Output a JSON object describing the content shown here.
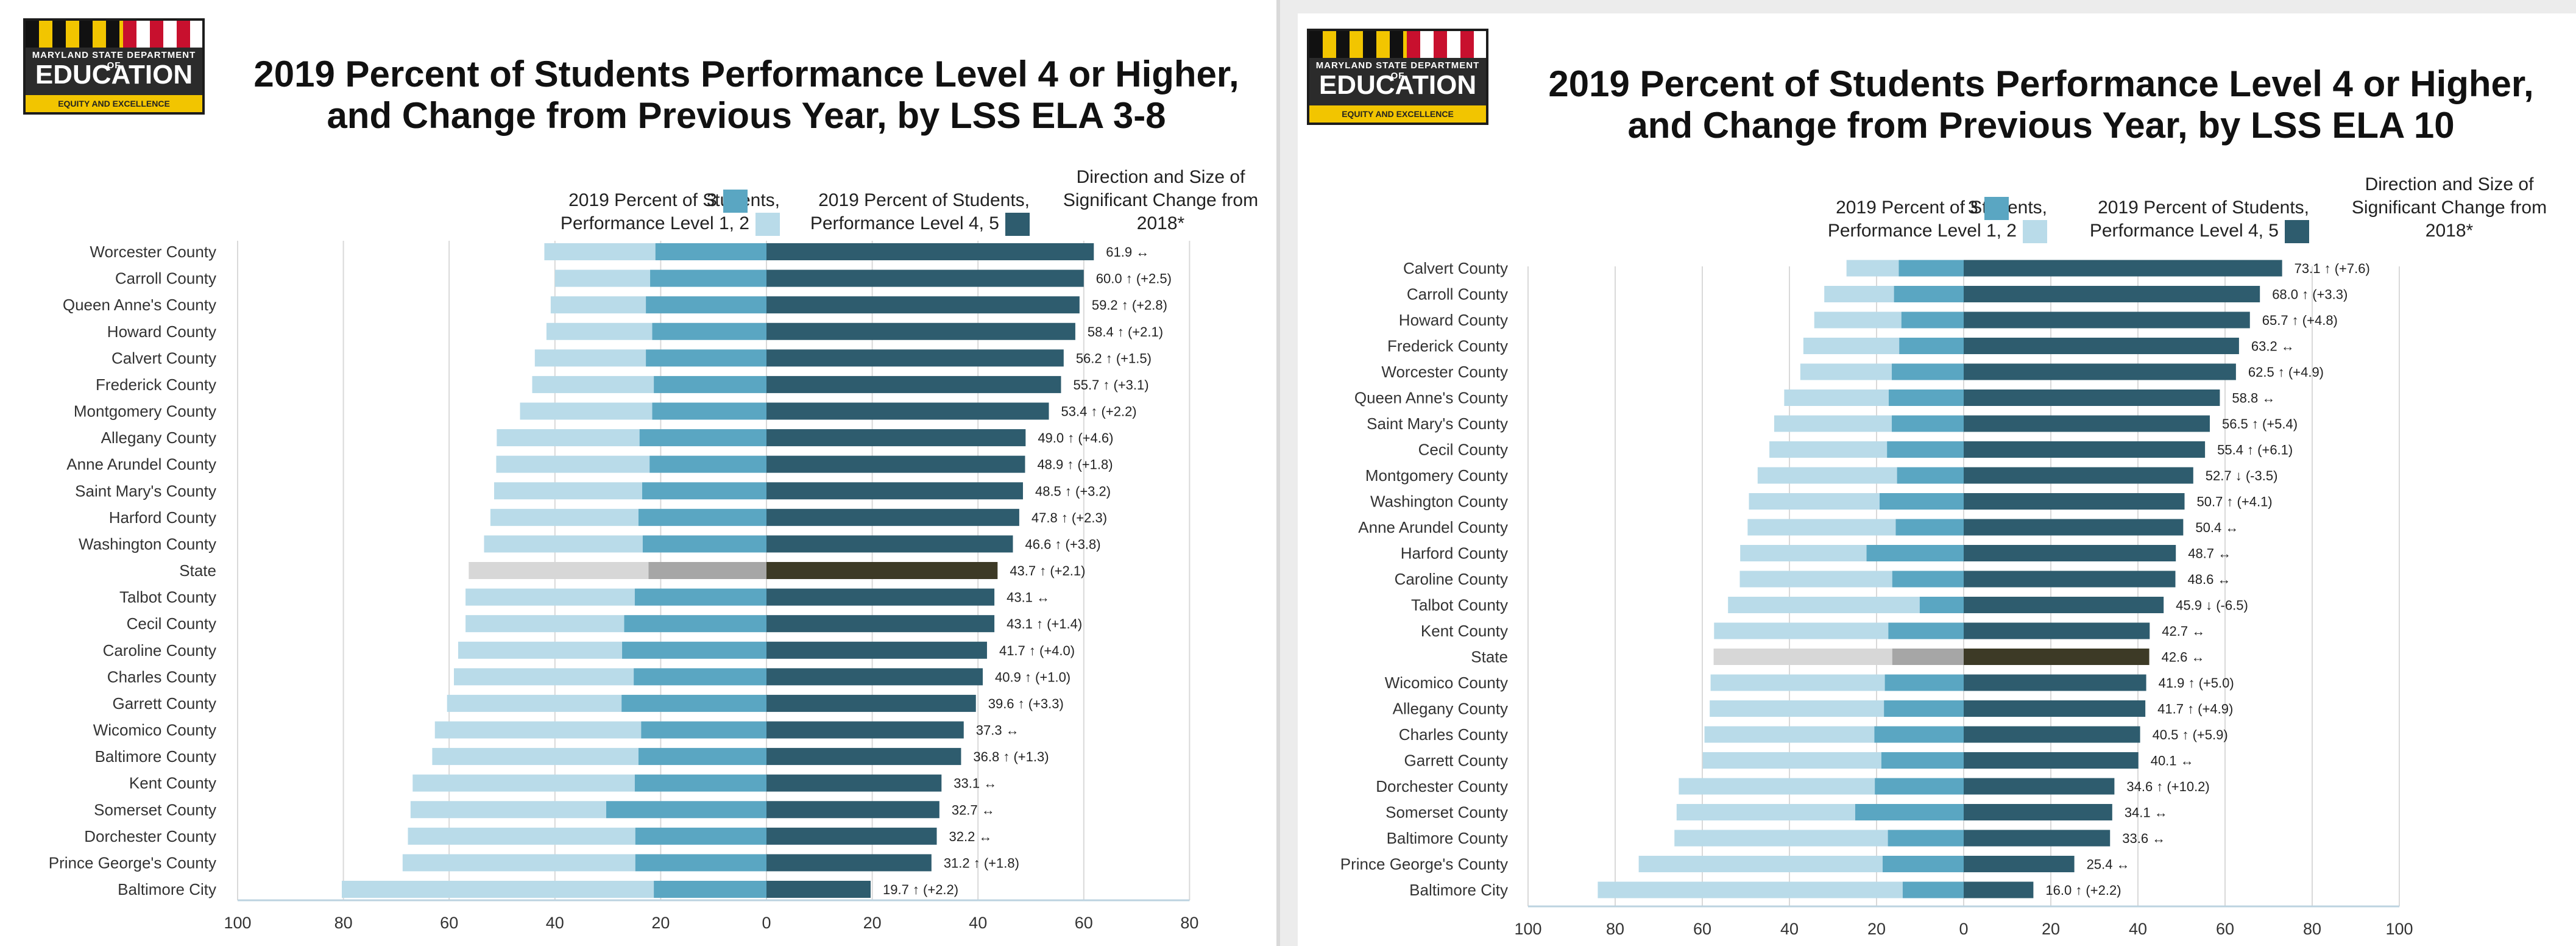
{
  "logo": {
    "state_line": "MARYLAND STATE DEPARTMENT OF",
    "name": "EDUCATION",
    "tagline": "EQUITY AND EXCELLENCE"
  },
  "legend": {
    "level12_label": "2019 Percent of Students,\nPerformance Level 1, 2",
    "level3_label": "3",
    "level45_label": "2019 Percent of Students,\nPerformance Level 4, 5",
    "change_label": "Direction and Size of\nSignificant Change from\n2018*"
  },
  "colors": {
    "level12": "#b9dbe9",
    "level3": "#5aa6c2",
    "level45": "#2e5c6e",
    "state_level12": "#d7d7d7",
    "state_level3": "#a6a6a6",
    "state_level45": "#3d3a26",
    "grid": "#d9d9d9",
    "axis": "#bcd3e0"
  },
  "chart_data": [
    {
      "type": "bar",
      "title": "2019 Percent of Students Performance Level 4 or Higher,\nand Change from Previous Year, by LSS ELA 3-8",
      "x_ticks": [
        "100",
        "80",
        "60",
        "40",
        "20",
        "0",
        "20",
        "40",
        "60",
        "80"
      ],
      "xlim": [
        -100,
        80
      ],
      "grid": true,
      "rows": [
        {
          "name": "Worcester County",
          "level12": 21.0,
          "level3": 21.0,
          "level45": 61.9,
          "label": "61.9 ↔"
        },
        {
          "name": "Carroll County",
          "level12": 18.0,
          "level3": 22.0,
          "level45": 60.0,
          "label": "60.0 ↑ (+2.5)"
        },
        {
          "name": "Queen Anne's County",
          "level12": 18.0,
          "level3": 22.8,
          "level45": 59.2,
          "label": "59.2 ↑ (+2.8)"
        },
        {
          "name": "Howard County",
          "level12": 20.0,
          "level3": 21.6,
          "level45": 58.4,
          "label": "58.4 ↑ (+2.1)"
        },
        {
          "name": "Calvert County",
          "level12": 21.0,
          "level3": 22.8,
          "level45": 56.2,
          "label": "56.2 ↑ (+1.5)"
        },
        {
          "name": "Frederick County",
          "level12": 23.0,
          "level3": 21.3,
          "level45": 55.7,
          "label": "55.7 ↑ (+3.1)"
        },
        {
          "name": "Montgomery County",
          "level12": 25.0,
          "level3": 21.6,
          "level45": 53.4,
          "label": "53.4 ↑ (+2.2)"
        },
        {
          "name": "Allegany County",
          "level12": 27.0,
          "level3": 24.0,
          "level45": 49.0,
          "label": "49.0 ↑ (+4.6)"
        },
        {
          "name": "Anne Arundel County",
          "level12": 29.0,
          "level3": 22.1,
          "level45": 48.9,
          "label": "48.9 ↑ (+1.8)"
        },
        {
          "name": "Saint Mary's County",
          "level12": 28.0,
          "level3": 23.5,
          "level45": 48.5,
          "label": "48.5 ↑ (+3.2)"
        },
        {
          "name": "Harford County",
          "level12": 28.0,
          "level3": 24.2,
          "level45": 47.8,
          "label": "47.8 ↑ (+2.3)"
        },
        {
          "name": "Washington County",
          "level12": 30.0,
          "level3": 23.4,
          "level45": 46.6,
          "label": "46.6 ↑ (+3.8)"
        },
        {
          "name": "State",
          "level12": 34.0,
          "level3": 22.3,
          "level45": 43.7,
          "label": "43.7 ↑ (+2.1)",
          "is_state": true
        },
        {
          "name": "Talbot County",
          "level12": 32.0,
          "level3": 24.9,
          "level45": 43.1,
          "label": "43.1 ↔"
        },
        {
          "name": "Cecil County",
          "level12": 30.0,
          "level3": 26.9,
          "level45": 43.1,
          "label": "43.1 ↑ (+1.4)"
        },
        {
          "name": "Caroline County",
          "level12": 31.0,
          "level3": 27.3,
          "level45": 41.7,
          "label": "41.7 ↑ (+4.0)"
        },
        {
          "name": "Charles County",
          "level12": 34.0,
          "level3": 25.1,
          "level45": 40.9,
          "label": "40.9 ↑ (+1.0)"
        },
        {
          "name": "Garrett County",
          "level12": 33.0,
          "level3": 27.4,
          "level45": 39.6,
          "label": "39.6 ↑ (+3.3)"
        },
        {
          "name": "Wicomico County",
          "level12": 39.0,
          "level3": 23.7,
          "level45": 37.3,
          "label": "37.3 ↔"
        },
        {
          "name": "Baltimore County",
          "level12": 39.0,
          "level3": 24.2,
          "level45": 36.8,
          "label": "36.8 ↑ (+1.3)"
        },
        {
          "name": "Kent County",
          "level12": 42.0,
          "level3": 24.9,
          "level45": 33.1,
          "label": "33.1 ↔"
        },
        {
          "name": "Somerset County",
          "level12": 37.0,
          "level3": 30.3,
          "level45": 32.7,
          "label": "32.7 ↔"
        },
        {
          "name": "Dorchester County",
          "level12": 43.0,
          "level3": 24.8,
          "level45": 32.2,
          "label": "32.2 ↔"
        },
        {
          "name": "Prince George's County",
          "level12": 44.0,
          "level3": 24.8,
          "level45": 31.2,
          "label": "31.2 ↑ (+1.8)"
        },
        {
          "name": "Baltimore City",
          "level12": 59.0,
          "level3": 21.3,
          "level45": 19.7,
          "label": "19.7 ↑ (+2.2)"
        }
      ]
    },
    {
      "type": "bar",
      "title": "2019 Percent of Students Performance Level 4 or Higher,\nand Change from Previous Year, by LSS ELA 10",
      "x_ticks": [
        "100",
        "80",
        "60",
        "40",
        "20",
        "0",
        "20",
        "40",
        "60",
        "80",
        "100"
      ],
      "xlim": [
        -100,
        100
      ],
      "grid": true,
      "rows": [
        {
          "name": "Calvert County",
          "level12": 12.0,
          "level3": 14.9,
          "level45": 73.1,
          "label": "73.1 ↑ (+7.6)"
        },
        {
          "name": "Carroll County",
          "level12": 16.0,
          "level3": 16.0,
          "level45": 68.0,
          "label": "68.0 ↑ (+3.3)"
        },
        {
          "name": "Howard County",
          "level12": 20.0,
          "level3": 14.3,
          "level45": 65.7,
          "label": "65.7 ↑ (+4.8)"
        },
        {
          "name": "Frederick County",
          "level12": 22.0,
          "level3": 14.8,
          "level45": 63.2,
          "label": "63.2 ↔"
        },
        {
          "name": "Worcester County",
          "level12": 21.0,
          "level3": 16.5,
          "level45": 62.5,
          "label": "62.5 ↑ (+4.9)"
        },
        {
          "name": "Queen Anne's County",
          "level12": 24.0,
          "level3": 17.2,
          "level45": 58.8,
          "label": "58.8 ↔"
        },
        {
          "name": "Saint Mary's County",
          "level12": 27.0,
          "level3": 16.5,
          "level45": 56.5,
          "label": "56.5 ↑ (+5.4)"
        },
        {
          "name": "Cecil County",
          "level12": 27.0,
          "level3": 17.6,
          "level45": 55.4,
          "label": "55.4 ↑ (+6.1)"
        },
        {
          "name": "Montgomery County",
          "level12": 32.0,
          "level3": 15.3,
          "level45": 52.7,
          "label": "52.7 ↓ (-3.5)"
        },
        {
          "name": "Washington County",
          "level12": 30.0,
          "level3": 19.3,
          "level45": 50.7,
          "label": "50.7 ↑ (+4.1)"
        },
        {
          "name": "Anne Arundel County",
          "level12": 34.0,
          "level3": 15.6,
          "level45": 50.4,
          "label": "50.4 ↔"
        },
        {
          "name": "Harford County",
          "level12": 29.0,
          "level3": 22.3,
          "level45": 48.7,
          "label": "48.7 ↔"
        },
        {
          "name": "Caroline County",
          "level12": 35.0,
          "level3": 16.4,
          "level45": 48.6,
          "label": "48.6 ↔"
        },
        {
          "name": "Talbot County",
          "level12": 44.0,
          "level3": 10.1,
          "level45": 45.9,
          "label": "45.9 ↓ (-6.5)"
        },
        {
          "name": "Kent County",
          "level12": 40.0,
          "level3": 17.3,
          "level45": 42.7,
          "label": "42.7 ↔"
        },
        {
          "name": "State",
          "level12": 41.0,
          "level3": 16.4,
          "level45": 42.6,
          "label": "42.6 ↔",
          "is_state": true
        },
        {
          "name": "Wicomico County",
          "level12": 40.0,
          "level3": 18.1,
          "level45": 41.9,
          "label": "41.9 ↑ (+5.0)"
        },
        {
          "name": "Allegany County",
          "level12": 40.0,
          "level3": 18.3,
          "level45": 41.7,
          "label": "41.7 ↑ (+4.9)"
        },
        {
          "name": "Charles County",
          "level12": 39.0,
          "level3": 20.5,
          "level45": 40.5,
          "label": "40.5 ↑ (+5.9)"
        },
        {
          "name": "Garrett County",
          "level12": 41.0,
          "level3": 18.9,
          "level45": 40.1,
          "label": "40.1 ↔"
        },
        {
          "name": "Dorchester County",
          "level12": 45.0,
          "level3": 20.4,
          "level45": 34.6,
          "label": "34.6 ↑ (+10.2)"
        },
        {
          "name": "Somerset County",
          "level12": 41.0,
          "level3": 24.9,
          "level45": 34.1,
          "label": "34.1 ↔"
        },
        {
          "name": "Baltimore County",
          "level12": 49.0,
          "level3": 17.4,
          "level45": 33.6,
          "label": "33.6 ↔"
        },
        {
          "name": "Prince George's County",
          "level12": 56.0,
          "level3": 18.6,
          "level45": 25.4,
          "label": "25.4 ↔"
        },
        {
          "name": "Baltimore City",
          "level12": 70.0,
          "level3": 14.0,
          "level45": 16.0,
          "label": "16.0 ↑ (+2.2)"
        }
      ]
    }
  ]
}
